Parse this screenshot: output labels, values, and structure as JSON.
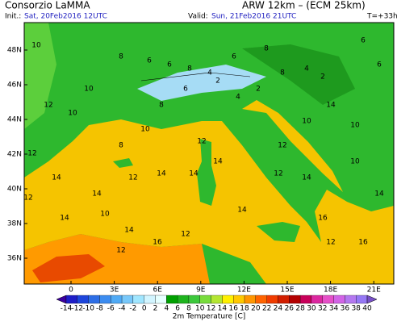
{
  "header": {
    "agency": "Consorzio LaMMA",
    "model": "ARW 12km – (ECM 25km)",
    "init_label": "Init.:",
    "init": "Sat, 20Feb2016  12UTC",
    "valid_label": "Valid:",
    "valid": "Sun, 21Feb2016  21UTC",
    "lead": "T=+33h"
  },
  "map": {
    "lat_labels": [
      "48N",
      "46N",
      "44N",
      "42N",
      "40N",
      "38N",
      "36N"
    ],
    "lon_labels": [
      "0",
      "3E",
      "6E",
      "9E",
      "12E",
      "15E",
      "18E",
      "21E"
    ],
    "labels": [
      10,
      8,
      6,
      6,
      8,
      4,
      6,
      8,
      2,
      8,
      4,
      2,
      6,
      6,
      10,
      12,
      10,
      8,
      6,
      4,
      2,
      10,
      12,
      14,
      10,
      12,
      14,
      14,
      12,
      10,
      8,
      12,
      14,
      14,
      14,
      16,
      14,
      12,
      10,
      12,
      14,
      12,
      14,
      16,
      16,
      14,
      12,
      14,
      12,
      10
    ]
  },
  "colorbar": {
    "title": "2m Temperature [C]",
    "ticks": [
      -14,
      -12,
      -10,
      -8,
      -6,
      -4,
      -2,
      0,
      2,
      4,
      6,
      8,
      10,
      12,
      14,
      16,
      18,
      20,
      22,
      24,
      26,
      28,
      30,
      32,
      34,
      36,
      38,
      40
    ],
    "colors": [
      "#3c00a0",
      "#1e1ec8",
      "#1e46dc",
      "#2d6ee6",
      "#3c8cf0",
      "#50aaf5",
      "#78c8fa",
      "#a0e6ff",
      "#d2f5ff",
      "#e6ffff",
      "#00a000",
      "#1eb41e",
      "#3cc83c",
      "#78dc3c",
      "#b4e632",
      "#fff000",
      "#ffc800",
      "#ff9600",
      "#ff6400",
      "#f03c00",
      "#d21e00",
      "#b40000",
      "#c8005a",
      "#dc28a0",
      "#e650c8",
      "#d264e6",
      "#b478f0",
      "#9678f5",
      "#7850c8"
    ]
  }
}
